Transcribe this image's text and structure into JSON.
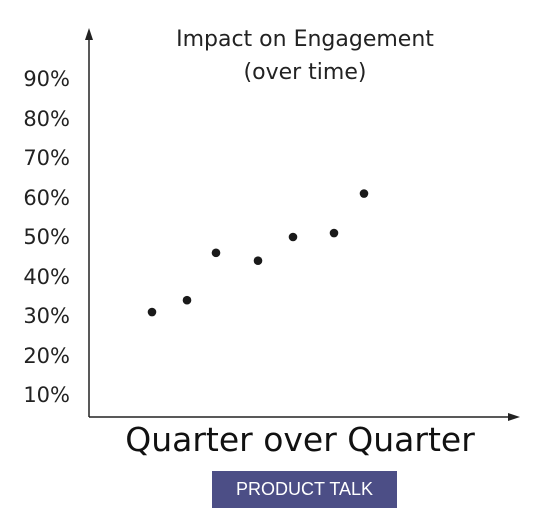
{
  "chart_data": {
    "type": "scatter",
    "title": "Impact on Engagement",
    "subtitle": "(over time)",
    "xlabel": "Quarter over Quarter",
    "ylabel": "",
    "ylim": [
      0,
      100
    ],
    "yticks": [
      "10%",
      "20%",
      "30%",
      "40%",
      "50%",
      "60%",
      "70%",
      "80%",
      "90%"
    ],
    "grid": false,
    "points": [
      {
        "x": 1,
        "y": 31
      },
      {
        "x": 2,
        "y": 34
      },
      {
        "x": 3,
        "y": 46
      },
      {
        "x": 4,
        "y": 44
      },
      {
        "x": 5,
        "y": 50
      },
      {
        "x": 6,
        "y": 51
      },
      {
        "x": 7,
        "y": 61
      }
    ],
    "point_color": "#1a1a1a"
  },
  "logo": {
    "text": "PRODUCT TALK",
    "color": "#4c4e86"
  }
}
